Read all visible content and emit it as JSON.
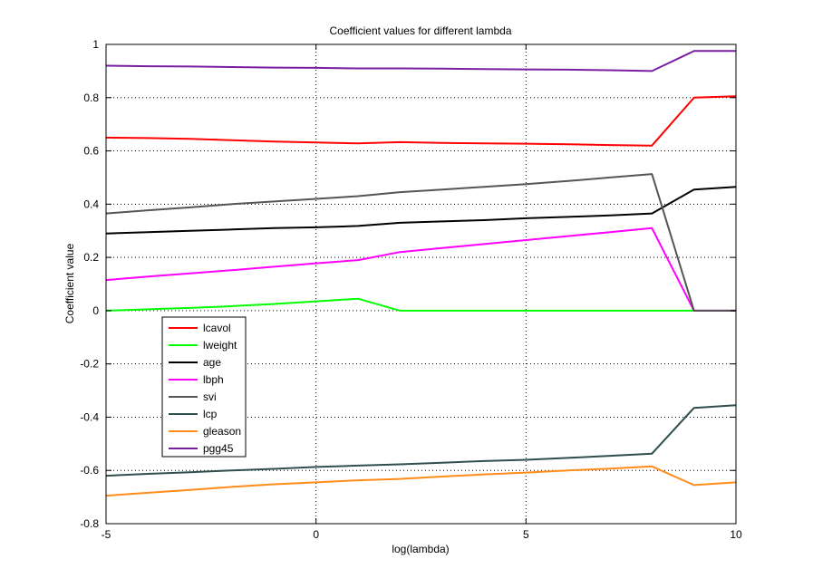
{
  "chart_data": {
    "type": "line",
    "title": "Coefficient values for different lambda",
    "xlabel": "log(lambda)",
    "ylabel": "Coefficient value",
    "xlim": [
      -5,
      10
    ],
    "ylim": [
      -0.8,
      1
    ],
    "xticks": [
      -5,
      0,
      5,
      10
    ],
    "yticks": [
      -0.8,
      -0.6,
      -0.4,
      -0.2,
      0,
      0.2,
      0.4,
      0.6,
      0.8,
      1
    ],
    "grid": true,
    "legend_position": "lower-left",
    "x": [
      -5,
      -4,
      -3,
      -2,
      -1,
      0,
      1,
      2,
      3,
      4,
      5,
      6,
      7,
      8,
      9,
      10
    ],
    "series": [
      {
        "name": "lcavol",
        "color": "#ff0000",
        "values": [
          0.65,
          0.648,
          0.645,
          0.64,
          0.635,
          0.632,
          0.628,
          0.633,
          0.63,
          0.628,
          0.627,
          0.625,
          0.622,
          0.62,
          0.8,
          0.805
        ]
      },
      {
        "name": "lweight",
        "color": "#00ff00",
        "values": [
          0.0,
          0.005,
          0.01,
          0.017,
          0.025,
          0.035,
          0.045,
          0.0,
          0.0,
          0.0,
          0.0,
          0.0,
          0.0,
          0.0,
          0.0,
          0.0
        ]
      },
      {
        "name": "age",
        "color": "#000000",
        "values": [
          0.29,
          0.295,
          0.3,
          0.305,
          0.31,
          0.313,
          0.318,
          0.33,
          0.335,
          0.34,
          0.347,
          0.352,
          0.358,
          0.365,
          0.455,
          0.465
        ]
      },
      {
        "name": "lbph",
        "color": "#ff00ff",
        "values": [
          0.115,
          0.128,
          0.14,
          0.152,
          0.165,
          0.178,
          0.19,
          0.22,
          0.235,
          0.25,
          0.265,
          0.28,
          0.295,
          0.31,
          0.0,
          0.0
        ]
      },
      {
        "name": "svi",
        "color": "#555555",
        "values": [
          0.365,
          0.377,
          0.388,
          0.4,
          0.41,
          0.42,
          0.43,
          0.445,
          0.455,
          0.465,
          0.475,
          0.487,
          0.5,
          0.513,
          0.0,
          0.0
        ]
      },
      {
        "name": "lcp",
        "color": "#2f4f4f",
        "values": [
          -0.62,
          -0.613,
          -0.607,
          -0.6,
          -0.594,
          -0.587,
          -0.582,
          -0.577,
          -0.571,
          -0.565,
          -0.56,
          -0.553,
          -0.545,
          -0.537,
          -0.365,
          -0.355
        ]
      },
      {
        "name": "gleason",
        "color": "#ff8c1a",
        "values": [
          -0.695,
          -0.684,
          -0.673,
          -0.662,
          -0.652,
          -0.645,
          -0.637,
          -0.632,
          -0.623,
          -0.615,
          -0.608,
          -0.6,
          -0.593,
          -0.585,
          -0.655,
          -0.645
        ]
      },
      {
        "name": "pgg45",
        "color": "#7a1fa2",
        "values": [
          0.92,
          0.918,
          0.917,
          0.915,
          0.913,
          0.912,
          0.91,
          0.91,
          0.909,
          0.907,
          0.906,
          0.905,
          0.903,
          0.9,
          0.975,
          0.975
        ]
      }
    ]
  }
}
